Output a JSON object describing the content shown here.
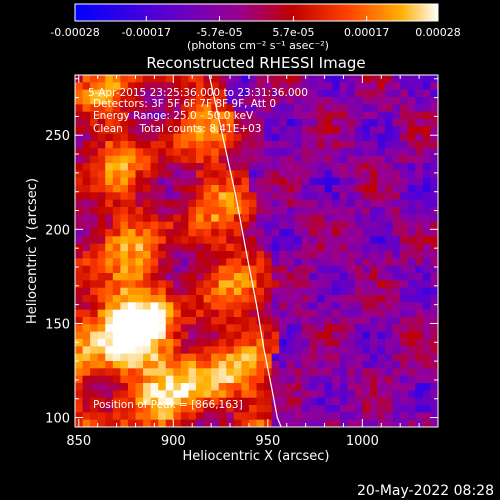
{
  "colorbar": {
    "tick_labels": [
      "-0.00028",
      "-0.00017",
      "-5.7e-05",
      "5.7e-05",
      "0.00017",
      "0.00028"
    ],
    "tick_values": [
      -0.00028,
      -0.00017,
      -5.7e-05,
      5.7e-05,
      0.00017,
      0.00028
    ],
    "range": [
      -0.00028,
      0.00028
    ],
    "unit_label": "(photons cm⁻² s⁻¹ asec⁻²)",
    "colors": [
      "#0000ff",
      "#5a00d0",
      "#9a0090",
      "#c00000",
      "#ff4000",
      "#ffb000",
      "#ffffff"
    ]
  },
  "chart_data": {
    "type": "heatmap",
    "title": "Reconstructed RHESSI Image",
    "xlabel": "Heliocentric X (arcsec)",
    "ylabel": "Heliocentric Y (arcsec)",
    "xlim": [
      848,
      1040
    ],
    "ylim": [
      95,
      282
    ],
    "xticks": [
      850,
      900,
      950,
      1000
    ],
    "yticks": [
      100,
      150,
      200,
      250
    ],
    "annotations": [
      "5-Apr-2015 23:25:36.000 to 23:31:36.000",
      "Detectors: 3F 5F 6F 7F 8F 9F, Att 0",
      "Energy Range: 25.0 - 50.0 keV",
      "Clean     Total counts: 8.41E+03"
    ],
    "peak_label": "Position of Peak = [866,163]",
    "peak": [
      866,
      163
    ],
    "limb_curve_x": [
      919,
      926,
      933,
      939,
      944,
      948,
      952,
      955,
      957
    ],
    "limb_curve_y": [
      282,
      250,
      218,
      186,
      160,
      136,
      116,
      100,
      95
    ]
  },
  "footer": {
    "timestamp": "20-May-2022 08:28"
  }
}
